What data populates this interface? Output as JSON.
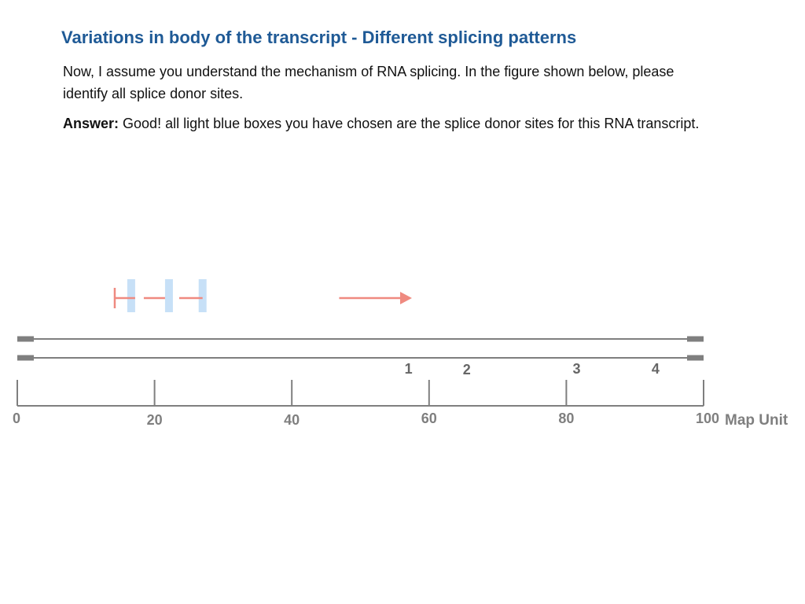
{
  "header": {
    "title": "Variations in body of the transcript - Different splicing patterns"
  },
  "question": {
    "text": "Now, I assume you understand the mechanism of RNA splicing. In the figure shown below, please identify all splice donor sites."
  },
  "answer": {
    "label": "Answer:",
    "text": "Good! all light blue boxes you have chosen are the splice donor sites for this RNA transcript."
  },
  "colors": {
    "title": "#1f5a96",
    "gray": "#7f7f7f",
    "arrow": "#ef8a80",
    "donor_box": "#c7e0f7"
  },
  "figure": {
    "axis": {
      "unit_label": "Map Unit",
      "ticks": [
        {
          "value": 0,
          "label": "0"
        },
        {
          "value": 20,
          "label": "20"
        },
        {
          "value": 40,
          "label": "40"
        },
        {
          "value": 60,
          "label": "60"
        },
        {
          "value": 80,
          "label": "80"
        },
        {
          "value": 100,
          "label": "100"
        }
      ]
    },
    "markers": [
      {
        "label": "1",
        "position": 57
      },
      {
        "label": "2",
        "position": 65.5
      },
      {
        "label": "3",
        "position": 81.5
      },
      {
        "label": "4",
        "position": 93
      }
    ],
    "donor_sites": [
      16.6,
      22.1,
      27.0
    ],
    "transcript": {
      "start": 14.2,
      "end": 57.5
    }
  }
}
